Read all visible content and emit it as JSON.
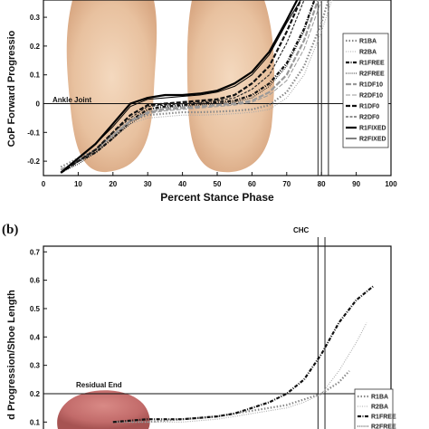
{
  "chart_data": [
    {
      "type": "line",
      "ylabel": "CoP Forward Progressio",
      "xlabel": "Percent Stance Phase",
      "xlim": [
        0,
        100
      ],
      "ylim": [
        -0.25,
        0.36
      ],
      "xticks": [
        "0",
        "10",
        "20",
        "30",
        "40",
        "50",
        "60",
        "70",
        "80",
        "90",
        "100"
      ],
      "yticks": [
        "-0.2",
        "-0.1",
        "0",
        "0.1",
        "0.2",
        "0.3"
      ],
      "annotation": "Ankle Joint",
      "hline_y": 0,
      "vlines_x": [
        79,
        80,
        82
      ],
      "legend_position": "right",
      "series": [
        {
          "name": "R1BA",
          "style": "dotted-gray",
          "x": [
            5,
            10,
            15,
            20,
            25,
            30,
            35,
            40,
            45,
            50,
            55,
            60,
            65,
            70,
            75,
            80,
            82
          ],
          "y": [
            -0.22,
            -0.19,
            -0.16,
            -0.11,
            -0.06,
            -0.04,
            -0.035,
            -0.03,
            -0.03,
            -0.028,
            -0.025,
            -0.02,
            -0.005,
            0.04,
            0.13,
            0.28,
            0.36
          ]
        },
        {
          "name": "R2BA",
          "style": "dotted-light",
          "x": [
            5,
            10,
            15,
            20,
            25,
            30,
            35,
            40,
            45,
            50,
            55,
            60,
            65,
            70,
            75,
            80,
            83
          ],
          "y": [
            -0.23,
            -0.2,
            -0.17,
            -0.12,
            -0.07,
            -0.05,
            -0.045,
            -0.04,
            -0.04,
            -0.038,
            -0.035,
            -0.03,
            -0.02,
            0.02,
            0.1,
            0.25,
            0.36
          ]
        },
        {
          "name": "R1FREE",
          "style": "dashdot-black",
          "x": [
            5,
            10,
            15,
            20,
            25,
            30,
            35,
            40,
            45,
            50,
            55,
            60,
            65,
            70,
            75,
            78
          ],
          "y": [
            -0.24,
            -0.2,
            -0.17,
            -0.12,
            -0.06,
            -0.02,
            -0.01,
            -0.005,
            0,
            0.005,
            0.01,
            0.03,
            0.07,
            0.14,
            0.26,
            0.36
          ]
        },
        {
          "name": "R2FREE",
          "style": "dotted-black",
          "x": [
            5,
            10,
            15,
            20,
            25,
            30,
            35,
            40,
            45,
            50,
            55,
            60,
            65,
            70,
            75,
            78
          ],
          "y": [
            -0.24,
            -0.21,
            -0.17,
            -0.12,
            -0.07,
            -0.03,
            -0.015,
            -0.01,
            -0.005,
            0,
            0.005,
            0.02,
            0.06,
            0.13,
            0.25,
            0.36
          ]
        },
        {
          "name": "R1DF10",
          "style": "dashed-gray",
          "x": [
            5,
            10,
            15,
            20,
            25,
            30,
            35,
            40,
            45,
            50,
            55,
            60,
            65,
            70,
            75,
            79
          ],
          "y": [
            -0.23,
            -0.2,
            -0.16,
            -0.11,
            -0.06,
            -0.03,
            -0.02,
            -0.015,
            -0.01,
            -0.005,
            0,
            0.01,
            0.04,
            0.1,
            0.22,
            0.36
          ]
        },
        {
          "name": "R2DF10",
          "style": "dashed-light",
          "x": [
            5,
            10,
            15,
            20,
            25,
            30,
            35,
            40,
            45,
            50,
            55,
            60,
            65,
            70,
            75,
            80
          ],
          "y": [
            -0.23,
            -0.2,
            -0.16,
            -0.11,
            -0.06,
            -0.035,
            -0.025,
            -0.02,
            -0.015,
            -0.01,
            -0.005,
            0.005,
            0.03,
            0.08,
            0.19,
            0.36
          ]
        },
        {
          "name": "R1DF0",
          "style": "dashed-black",
          "x": [
            5,
            10,
            15,
            20,
            25,
            30,
            35,
            40,
            45,
            50,
            55,
            60,
            65,
            70,
            74
          ],
          "y": [
            -0.24,
            -0.2,
            -0.16,
            -0.1,
            -0.04,
            -0.005,
            0,
            0.005,
            0.01,
            0.015,
            0.03,
            0.07,
            0.13,
            0.25,
            0.36
          ]
        },
        {
          "name": "R2DF0",
          "style": "shortdash-black",
          "x": [
            5,
            10,
            15,
            20,
            25,
            30,
            35,
            40,
            45,
            50,
            55,
            60,
            65,
            70,
            75
          ],
          "y": [
            -0.24,
            -0.2,
            -0.16,
            -0.1,
            -0.05,
            -0.01,
            -0.005,
            0,
            0.005,
            0.01,
            0.02,
            0.05,
            0.1,
            0.21,
            0.36
          ]
        },
        {
          "name": "R1FIXED",
          "style": "solid-thick",
          "x": [
            5,
            10,
            15,
            20,
            25,
            30,
            35,
            40,
            45,
            50,
            55,
            60,
            65,
            70,
            73
          ],
          "y": [
            -0.24,
            -0.19,
            -0.14,
            -0.07,
            0,
            0.02,
            0.03,
            0.03,
            0.035,
            0.045,
            0.07,
            0.11,
            0.18,
            0.29,
            0.36
          ]
        },
        {
          "name": "R2FIXED",
          "style": "solid-thin",
          "x": [
            5,
            10,
            15,
            20,
            25,
            30,
            35,
            40,
            45,
            50,
            55,
            60,
            65,
            70,
            74
          ],
          "y": [
            -0.24,
            -0.19,
            -0.14,
            -0.08,
            -0.01,
            0.015,
            0.02,
            0.025,
            0.03,
            0.04,
            0.06,
            0.1,
            0.17,
            0.28,
            0.36
          ]
        }
      ]
    },
    {
      "type": "line",
      "panel_label": "(b)",
      "ylabel": "d Progression/Shoe Length",
      "xlim": [
        0,
        100
      ],
      "ylim": [
        0.05,
        0.72
      ],
      "yticks": [
        "0.1",
        "0.2",
        "0.3",
        "0.4",
        "0.5",
        "0.6",
        "0.7"
      ],
      "annotations": [
        "CHC",
        "Residual End"
      ],
      "hline_y": 0.2,
      "vlines_x": [
        79,
        81
      ],
      "legend_position": "bottom-right",
      "series": [
        {
          "name": "R1BA",
          "style": "dotted-gray",
          "x": [
            20,
            30,
            40,
            50,
            55,
            60,
            65,
            70,
            75,
            80,
            85,
            88
          ],
          "y": [
            0.1,
            0.1,
            0.11,
            0.12,
            0.13,
            0.14,
            0.15,
            0.16,
            0.18,
            0.2,
            0.24,
            0.28
          ]
        },
        {
          "name": "R2BA",
          "style": "dotted-light",
          "x": [
            20,
            30,
            40,
            50,
            55,
            60,
            65,
            70,
            75,
            80,
            85,
            90,
            93
          ],
          "y": [
            0.1,
            0.1,
            0.1,
            0.11,
            0.12,
            0.13,
            0.14,
            0.15,
            0.17,
            0.2,
            0.28,
            0.38,
            0.45
          ]
        },
        {
          "name": "R1FREE",
          "style": "dashdot-black",
          "x": [
            20,
            30,
            40,
            50,
            55,
            60,
            65,
            70,
            75,
            80,
            85,
            90,
            95
          ],
          "y": [
            0.1,
            0.11,
            0.11,
            0.12,
            0.13,
            0.15,
            0.17,
            0.2,
            0.25,
            0.34,
            0.45,
            0.53,
            0.58
          ]
        },
        {
          "name": "R2FREE",
          "style": "dotted-black"
        }
      ]
    }
  ]
}
